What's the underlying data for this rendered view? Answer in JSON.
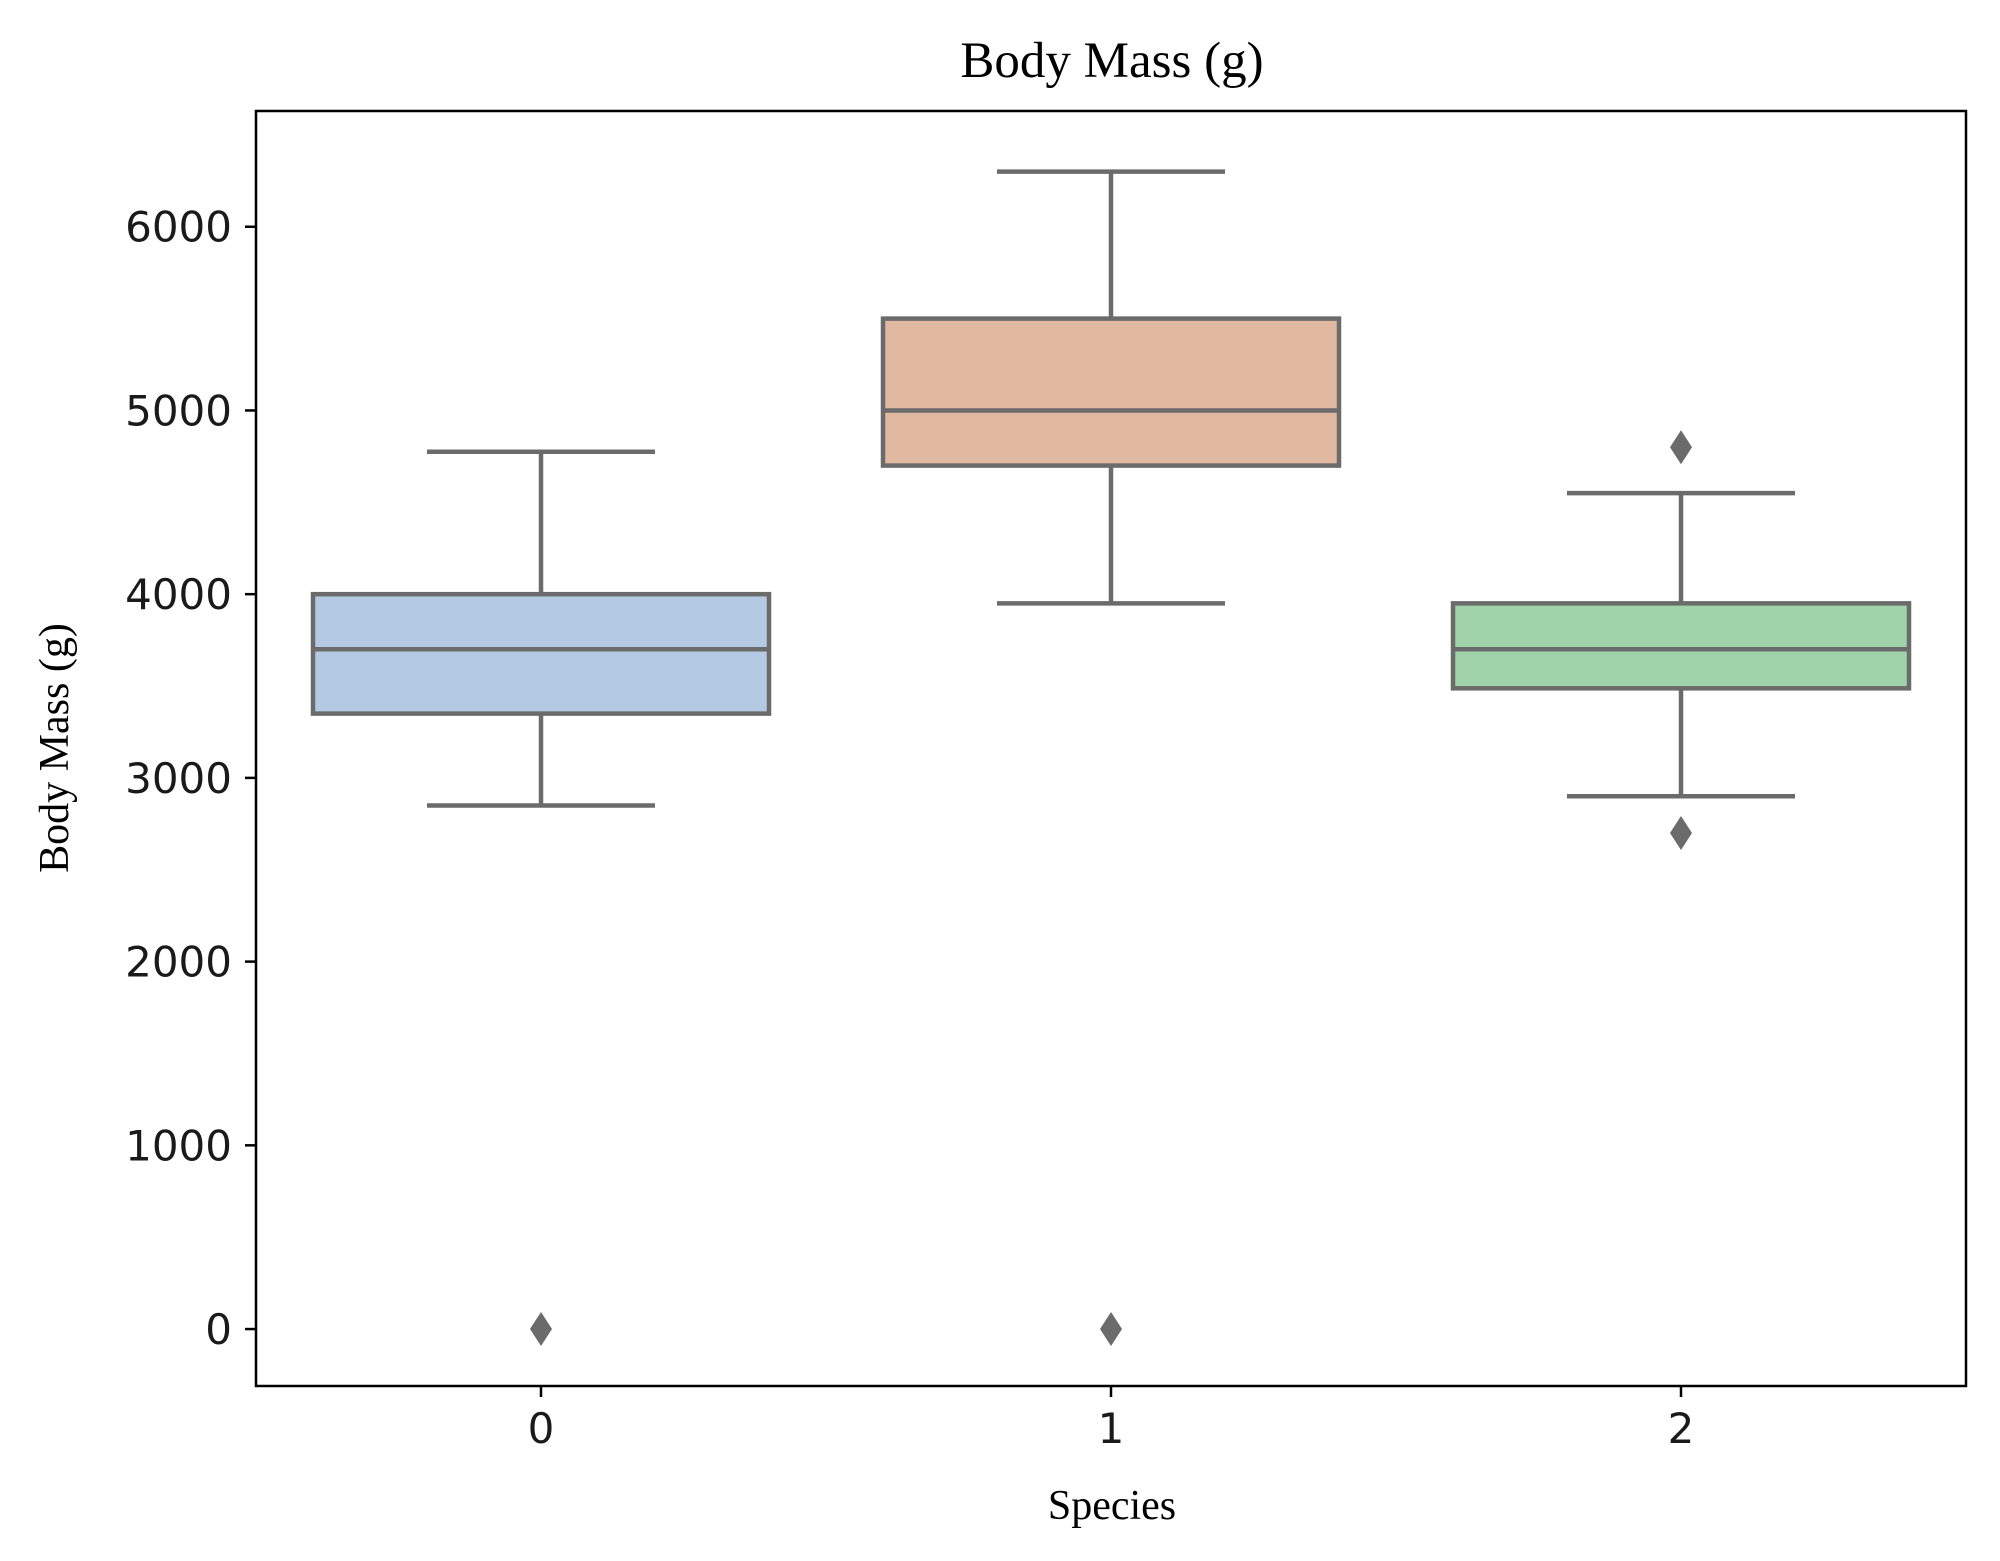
{
  "chart_data": {
    "type": "box",
    "title": "Body Mass (g)",
    "xlabel": "Species",
    "ylabel": "Body Mass (g)",
    "categories": [
      "0",
      "1",
      "2"
    ],
    "ylim": [
      -310,
      6630
    ],
    "yticks": [
      0,
      1000,
      2000,
      3000,
      4000,
      5000,
      6000
    ],
    "grid": false,
    "boxes": [
      {
        "category": "0",
        "whisker_low": 2850,
        "q1": 3350,
        "median": 3700,
        "q3": 4000,
        "whisker_high": 4775,
        "outliers": [
          0
        ],
        "color": "#b4cae3"
      },
      {
        "category": "1",
        "whisker_low": 3950,
        "q1": 4700,
        "median": 5000,
        "q3": 5500,
        "whisker_high": 6300,
        "outliers": [
          0
        ],
        "color": "#e1b9a0"
      },
      {
        "category": "2",
        "whisker_low": 2900,
        "q1": 3487.5,
        "median": 3700,
        "q3": 3950,
        "whisker_high": 4550,
        "outliers": [
          4800,
          2700
        ],
        "color": "#a0d3a9"
      }
    ],
    "line_color": "#6b6b6b"
  }
}
